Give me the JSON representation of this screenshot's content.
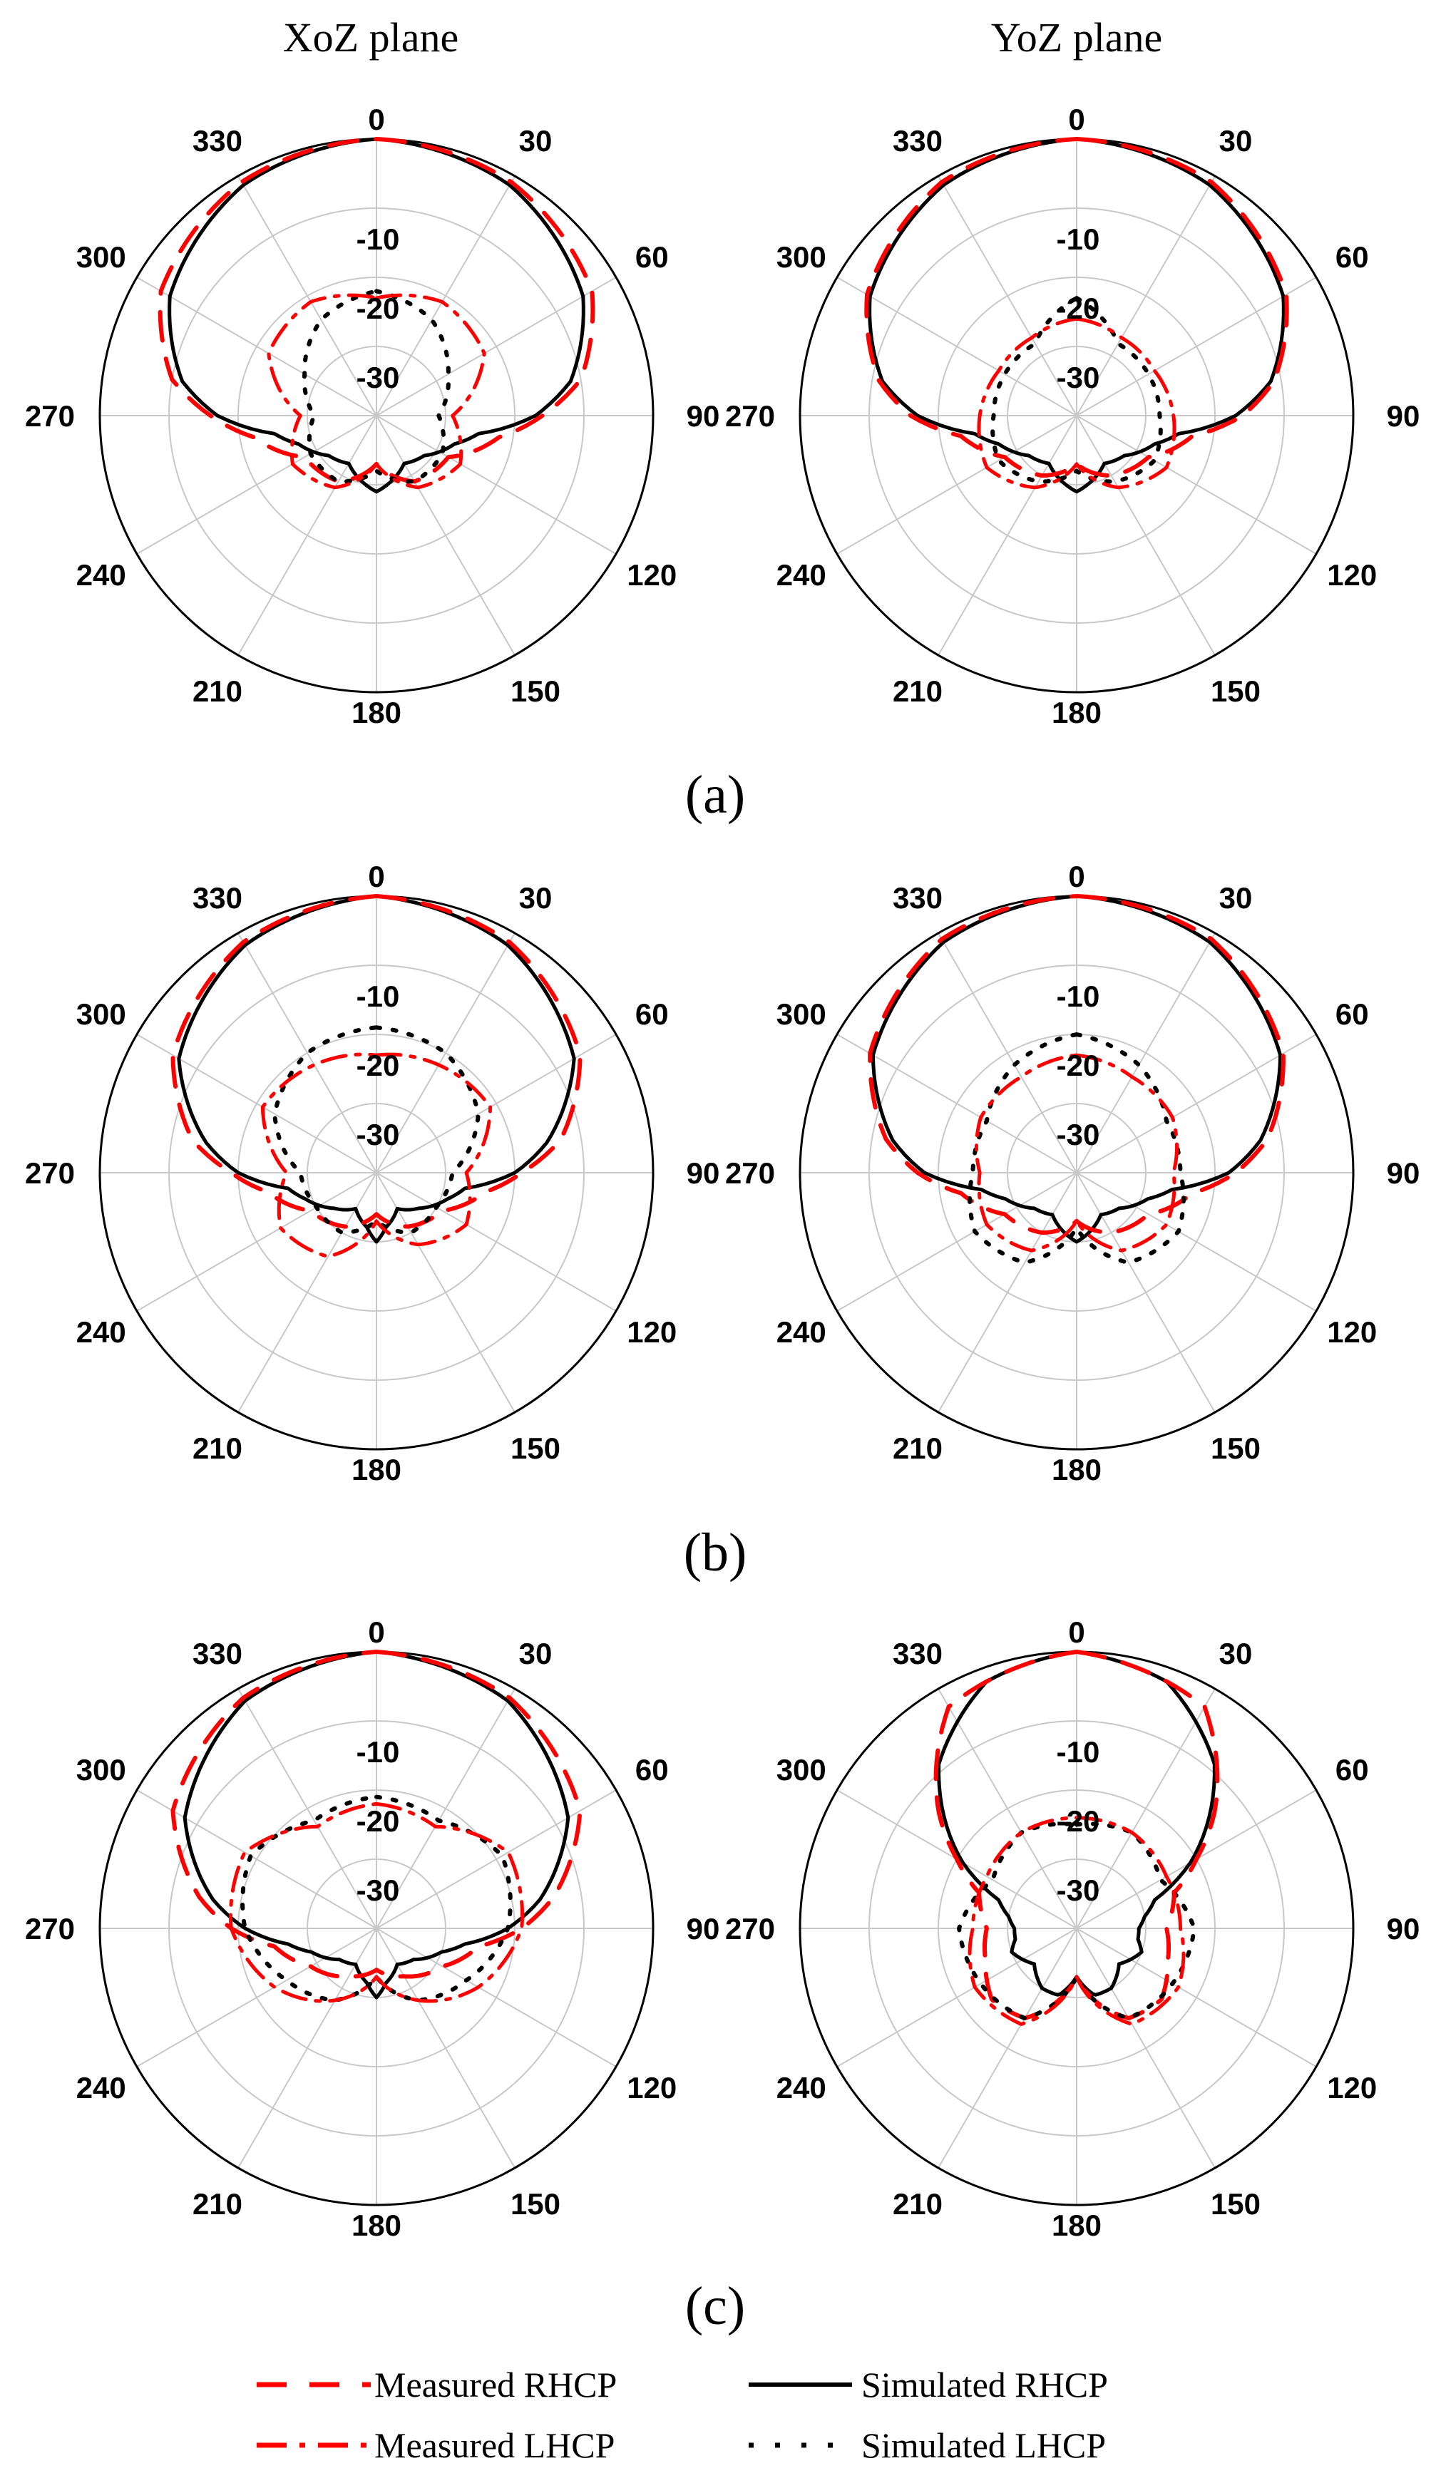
{
  "column_titles": [
    "XoZ plane",
    "YoZ plane"
  ],
  "panel_labels": [
    "(a)",
    "(b)",
    "(c)"
  ],
  "legend": [
    {
      "label": "Measured RHCP",
      "color": "#ff0000",
      "style": "dashed"
    },
    {
      "label": "Simulated RHCP",
      "color": "#000000",
      "style": "solid"
    },
    {
      "label": "Measured LHCP",
      "color": "#ff0000",
      "style": "dashdot"
    },
    {
      "label": "Simulated LHCP",
      "color": "#000000",
      "style": "dotted"
    }
  ],
  "chart_data": [
    {
      "type": "polar",
      "panel": "(a)",
      "plane": "XoZ plane",
      "angle_ticks": [
        "0",
        "30",
        "60",
        "90",
        "120",
        "150",
        "180",
        "210",
        "240",
        "270",
        "300",
        "330"
      ],
      "radial_ticks": [
        "-10",
        "-20",
        "-30"
      ],
      "rlim": [
        -40,
        0
      ],
      "grid": true,
      "series": [
        {
          "name": "Simulated RHCP",
          "angles": [
            0,
            30,
            60,
            80,
            90,
            100,
            110,
            130,
            150,
            170,
            180,
            190,
            210,
            230,
            250,
            260,
            270,
            280,
            300,
            330
          ],
          "values": [
            0,
            -1.5,
            -5.5,
            -11.5,
            -17,
            -25,
            -28,
            -31,
            -32,
            -30,
            -29,
            -30,
            -32,
            -31,
            -28,
            -25,
            -17,
            -11.5,
            -5.5,
            -1.5
          ]
        },
        {
          "name": "Measured RHCP",
          "angles": [
            0,
            30,
            60,
            80,
            90,
            100,
            120,
            150,
            180,
            210,
            240,
            260,
            270,
            280,
            300,
            330
          ],
          "values": [
            0,
            -1,
            -4,
            -10,
            -16,
            -22,
            -28,
            -29,
            -33,
            -29,
            -28,
            -22,
            -16,
            -10,
            -4,
            -1
          ]
        },
        {
          "name": "Simulated LHCP",
          "angles": [
            0,
            30,
            60,
            90,
            120,
            150,
            180,
            210,
            240,
            270,
            300,
            330
          ],
          "values": [
            -22,
            -24,
            -28,
            -31,
            -29,
            -29,
            -32,
            -29,
            -29,
            -31,
            -28,
            -24
          ]
        },
        {
          "name": "Measured LHCP",
          "angles": [
            0,
            30,
            60,
            90,
            120,
            150,
            180,
            210,
            240,
            270,
            300,
            330
          ],
          "values": [
            -23,
            -21,
            -22,
            -29,
            -26,
            -28,
            -33,
            -28,
            -26,
            -29,
            -22,
            -21
          ]
        }
      ]
    },
    {
      "type": "polar",
      "panel": "(a)",
      "plane": "YoZ plane",
      "angle_ticks": [
        "0",
        "30",
        "60",
        "90",
        "120",
        "150",
        "180",
        "210",
        "240",
        "270",
        "300",
        "330"
      ],
      "radial_ticks": [
        "-10",
        "-20",
        "-30"
      ],
      "rlim": [
        -40,
        0
      ],
      "grid": true,
      "series": [
        {
          "name": "Simulated RHCP",
          "angles": [
            0,
            30,
            60,
            80,
            90,
            100,
            110,
            130,
            150,
            170,
            180,
            190,
            210,
            230,
            250,
            260,
            270,
            280,
            300,
            330
          ],
          "values": [
            0,
            -1.5,
            -5.5,
            -11.5,
            -17,
            -25,
            -28,
            -31,
            -32,
            -30,
            -29,
            -30,
            -32,
            -31,
            -28,
            -25,
            -17,
            -11.5,
            -5.5,
            -1.5
          ]
        },
        {
          "name": "Measured RHCP",
          "angles": [
            0,
            30,
            60,
            80,
            90,
            100,
            120,
            150,
            180,
            210,
            240,
            260,
            270,
            280,
            300,
            330
          ],
          "values": [
            0,
            -1,
            -5,
            -11,
            -16,
            -23,
            -28,
            -30,
            -33,
            -30,
            -28,
            -23,
            -16,
            -11,
            -5,
            -1
          ]
        },
        {
          "name": "Simulated LHCP",
          "angles": [
            0,
            30,
            60,
            90,
            120,
            150,
            180,
            210,
            240,
            270,
            300,
            330
          ],
          "values": [
            -23,
            -28,
            -28,
            -28,
            -27,
            -29,
            -32,
            -29,
            -27,
            -28,
            -28,
            -28
          ]
        },
        {
          "name": "Measured LHCP",
          "angles": [
            0,
            30,
            60,
            90,
            120,
            150,
            180,
            210,
            240,
            270,
            300,
            330
          ],
          "values": [
            -26,
            -27,
            -27,
            -26,
            -25,
            -28,
            -33,
            -28,
            -25,
            -26,
            -27,
            -27
          ]
        }
      ]
    },
    {
      "type": "polar",
      "panel": "(b)",
      "plane": "XoZ plane",
      "angle_ticks": [
        "0",
        "30",
        "60",
        "90",
        "120",
        "150",
        "180",
        "210",
        "240",
        "270",
        "300",
        "330"
      ],
      "radial_ticks": [
        "-10",
        "-20",
        "-30"
      ],
      "rlim": [
        -40,
        0
      ],
      "grid": true,
      "series": [
        {
          "name": "Simulated RHCP",
          "angles": [
            0,
            30,
            60,
            80,
            90,
            100,
            110,
            130,
            150,
            170,
            180,
            190,
            210,
            230,
            250,
            260,
            270,
            280,
            300,
            330
          ],
          "values": [
            0,
            -2,
            -7,
            -15,
            -20,
            -27,
            -29,
            -32,
            -34,
            -32,
            -30,
            -32,
            -34,
            -32,
            -29,
            -27,
            -20,
            -15,
            -7,
            -2
          ]
        },
        {
          "name": "Measured RHCP",
          "angles": [
            0,
            30,
            60,
            80,
            90,
            100,
            120,
            150,
            180,
            210,
            240,
            260,
            270,
            280,
            300,
            330
          ],
          "values": [
            0,
            -1.5,
            -6,
            -13,
            -19,
            -24,
            -29,
            -31,
            -34,
            -31,
            -29,
            -24,
            -19,
            -13,
            -6,
            -1.5
          ]
        },
        {
          "name": "Simulated LHCP",
          "angles": [
            0,
            30,
            60,
            90,
            120,
            150,
            180,
            210,
            240,
            270,
            300,
            330
          ],
          "values": [
            -19,
            -20,
            -23,
            -29,
            -30,
            -30,
            -33,
            -30,
            -30,
            -29,
            -23,
            -20
          ]
        },
        {
          "name": "Measured LHCP",
          "angles": [
            0,
            30,
            60,
            90,
            120,
            150,
            180,
            210,
            240,
            270,
            300,
            330
          ],
          "values": [
            -23,
            -22,
            -21,
            -27,
            -25,
            -28,
            -33,
            -26,
            -24,
            -27,
            -21,
            -22
          ]
        }
      ]
    },
    {
      "type": "polar",
      "panel": "(b)",
      "plane": "YoZ plane",
      "angle_ticks": [
        "0",
        "30",
        "60",
        "90",
        "120",
        "150",
        "180",
        "210",
        "240",
        "270",
        "300",
        "330"
      ],
      "radial_ticks": [
        "-10",
        "-20",
        "-30"
      ],
      "rlim": [
        -40,
        0
      ],
      "grid": true,
      "series": [
        {
          "name": "Simulated RHCP",
          "angles": [
            0,
            30,
            60,
            80,
            90,
            100,
            110,
            130,
            150,
            170,
            180,
            190,
            210,
            230,
            250,
            260,
            270,
            280,
            300,
            330
          ],
          "values": [
            0,
            -1.5,
            -6,
            -13,
            -18,
            -26,
            -29,
            -32,
            -33,
            -31,
            -30,
            -31,
            -33,
            -32,
            -29,
            -26,
            -18,
            -13,
            -6,
            -1.5
          ]
        },
        {
          "name": "Measured RHCP",
          "angles": [
            0,
            30,
            60,
            80,
            90,
            100,
            120,
            150,
            180,
            210,
            240,
            260,
            270,
            280,
            300,
            330
          ],
          "values": [
            0,
            -1,
            -5.5,
            -12,
            -17,
            -23,
            -28,
            -30,
            -33,
            -30,
            -28,
            -23,
            -17,
            -12,
            -5.5,
            -1
          ]
        },
        {
          "name": "Simulated LHCP",
          "angles": [
            0,
            30,
            60,
            90,
            120,
            150,
            180,
            210,
            240,
            270,
            300,
            330
          ],
          "values": [
            -20,
            -22,
            -25,
            -25,
            -23,
            -25,
            -32,
            -25,
            -23,
            -25,
            -25,
            -22
          ]
        },
        {
          "name": "Measured LHCP",
          "angles": [
            0,
            30,
            60,
            90,
            120,
            150,
            180,
            210,
            240,
            270,
            300,
            330
          ],
          "values": [
            -23,
            -24,
            -24,
            -26,
            -25,
            -27,
            -33,
            -27,
            -25,
            -26,
            -24,
            -24
          ]
        }
      ]
    },
    {
      "type": "polar",
      "panel": "(c)",
      "plane": "XoZ plane",
      "angle_ticks": [
        "0",
        "30",
        "60",
        "90",
        "120",
        "150",
        "180",
        "210",
        "240",
        "270",
        "300",
        "330"
      ],
      "radial_ticks": [
        "-10",
        "-20",
        "-30"
      ],
      "rlim": [
        -40,
        0
      ],
      "grid": true,
      "series": [
        {
          "name": "Simulated RHCP",
          "angles": [
            0,
            30,
            60,
            80,
            90,
            100,
            110,
            130,
            150,
            170,
            180,
            190,
            210,
            230,
            250,
            260,
            270,
            280,
            300,
            330
          ],
          "values": [
            0,
            -2,
            -8,
            -16,
            -21,
            -27,
            -30,
            -33,
            -34,
            -32,
            -30,
            -32,
            -34,
            -33,
            -30,
            -27,
            -21,
            -16,
            -8,
            -2
          ]
        },
        {
          "name": "Measured RHCP",
          "angles": [
            0,
            30,
            60,
            80,
            90,
            100,
            120,
            150,
            180,
            210,
            240,
            260,
            270,
            280,
            300,
            330
          ],
          "values": [
            0,
            -1.5,
            -6,
            -14,
            -19,
            -25,
            -29,
            -32,
            -34,
            -32,
            -29,
            -25,
            -19,
            -14,
            -6,
            -1.5
          ]
        },
        {
          "name": "Simulated LHCP",
          "angles": [
            0,
            30,
            60,
            90,
            120,
            150,
            180,
            210,
            240,
            270,
            300,
            330
          ],
          "values": [
            -21,
            -22,
            -19,
            -21,
            -25,
            -28,
            -33,
            -28,
            -25,
            -21,
            -19,
            -22
          ]
        },
        {
          "name": "Measured LHCP",
          "angles": [
            0,
            30,
            60,
            90,
            120,
            150,
            180,
            210,
            240,
            270,
            300,
            330
          ],
          "values": [
            -22,
            -23,
            -18,
            -19,
            -23,
            -28,
            -33,
            -28,
            -23,
            -19,
            -18,
            -23
          ]
        }
      ]
    },
    {
      "type": "polar",
      "panel": "(c)",
      "plane": "YoZ plane",
      "angle_ticks": [
        "0",
        "30",
        "60",
        "90",
        "120",
        "150",
        "180",
        "210",
        "240",
        "270",
        "300",
        "330"
      ],
      "radial_ticks": [
        "-10",
        "-20",
        "-30"
      ],
      "rlim": [
        -40,
        0
      ],
      "grid": true,
      "series": [
        {
          "name": "Simulated RHCP",
          "angles": [
            0,
            20,
            40,
            50,
            60,
            70,
            80,
            90,
            100,
            110,
            130,
            150,
            165,
            180,
            195,
            210,
            230,
            250,
            260,
            270,
            280,
            290,
            300,
            310,
            320,
            340
          ],
          "values": [
            0,
            -2,
            -9,
            -15,
            -21,
            -28,
            -30,
            -31,
            -31,
            -30,
            -32,
            -30,
            -30,
            -33,
            -30,
            -30,
            -32,
            -30,
            -31,
            -31,
            -30,
            -28,
            -21,
            -15,
            -9,
            -2
          ]
        },
        {
          "name": "Measured RHCP",
          "angles": [
            0,
            30,
            50,
            60,
            70,
            90,
            110,
            130,
            150,
            180,
            210,
            230,
            250,
            270,
            290,
            300,
            310,
            330
          ],
          "values": [
            0,
            -3,
            -14,
            -20,
            -25,
            -27,
            -26,
            -24,
            -25,
            -33,
            -25,
            -24,
            -26,
            -27,
            -25,
            -20,
            -14,
            -3
          ]
        },
        {
          "name": "Simulated LHCP",
          "angles": [
            0,
            30,
            60,
            90,
            120,
            150,
            180,
            210,
            240,
            270,
            300,
            330
          ],
          "values": [
            -25,
            -24,
            -26,
            -23,
            -24,
            -25,
            -33,
            -25,
            -24,
            -23,
            -26,
            -24
          ]
        },
        {
          "name": "Measured LHCP",
          "angles": [
            0,
            30,
            60,
            90,
            120,
            150,
            180,
            210,
            240,
            270,
            300,
            330
          ],
          "values": [
            -24,
            -24,
            -25,
            -25,
            -23,
            -24,
            -33,
            -24,
            -23,
            -25,
            -25,
            -24
          ]
        }
      ]
    }
  ]
}
